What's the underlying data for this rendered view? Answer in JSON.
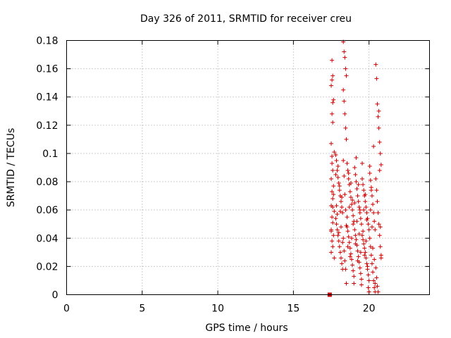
{
  "chart_data": {
    "type": "scatter",
    "title": "Day 326 of 2011, SRMTID for receiver creu",
    "xlabel": "GPS time / hours",
    "ylabel": "SRMTID / TECUs",
    "xlim": [
      0,
      24
    ],
    "ylim": [
      0,
      0.18
    ],
    "xticks": [
      0,
      5,
      10,
      15,
      20
    ],
    "xtick_labels": [
      "0",
      "5",
      "10",
      "15",
      "20"
    ],
    "yticks": [
      0,
      0.02,
      0.04,
      0.06,
      0.08,
      0.1,
      0.12,
      0.14,
      0.16,
      0.18
    ],
    "ytick_labels": [
      "0",
      "0.02",
      "0.04",
      "0.06",
      "0.08",
      "0.1",
      "0.12",
      "0.14",
      "0.16",
      "0.18"
    ],
    "grid": true,
    "marker_color": "#cc0000",
    "zero_marker": {
      "x": 17.4,
      "y": 0.0
    },
    "series": [
      {
        "name": "creu",
        "x": [
          17.55,
          17.6,
          17.5,
          17.65,
          17.55,
          17.6,
          17.5,
          17.7,
          17.55,
          17.6,
          17.5,
          17.65,
          17.55,
          17.6,
          17.5,
          17.7,
          17.55,
          17.6,
          17.5,
          17.65,
          17.55,
          17.6,
          17.5,
          17.7,
          17.55,
          17.6,
          17.5,
          17.65,
          17.55,
          17.6,
          17.8,
          17.85,
          17.9,
          17.95,
          18.0,
          18.05,
          18.1,
          18.15,
          18.2,
          18.25,
          17.8,
          17.85,
          17.9,
          17.95,
          18.0,
          18.05,
          18.1,
          18.15,
          18.2,
          18.25,
          17.8,
          17.85,
          17.9,
          17.95,
          18.0,
          18.05,
          18.1,
          18.15,
          18.2,
          18.25,
          18.3,
          18.35,
          18.4,
          18.45,
          18.5,
          18.3,
          18.35,
          18.4,
          18.45,
          18.5,
          18.3,
          18.35,
          18.4,
          18.45,
          18.5,
          18.3,
          18.35,
          18.4,
          18.45,
          18.5,
          18.55,
          18.6,
          18.65,
          18.7,
          18.75,
          18.8,
          18.85,
          18.9,
          18.95,
          19.0,
          18.55,
          18.6,
          18.65,
          18.7,
          18.75,
          18.8,
          18.85,
          18.9,
          18.95,
          19.0,
          18.55,
          18.6,
          18.65,
          18.7,
          18.75,
          18.8,
          18.85,
          18.9,
          18.95,
          19.0,
          19.05,
          19.1,
          19.15,
          19.2,
          19.25,
          19.3,
          19.35,
          19.4,
          19.45,
          19.5,
          19.05,
          19.1,
          19.15,
          19.2,
          19.25,
          19.3,
          19.35,
          19.4,
          19.45,
          19.5,
          19.05,
          19.1,
          19.15,
          19.2,
          19.25,
          19.3,
          19.35,
          19.4,
          19.45,
          19.5,
          19.55,
          19.6,
          19.65,
          19.7,
          19.75,
          19.8,
          19.85,
          19.9,
          19.95,
          20.0,
          19.55,
          19.6,
          19.65,
          19.7,
          19.75,
          19.8,
          19.85,
          19.9,
          19.95,
          20.0,
          19.55,
          19.6,
          19.65,
          19.7,
          19.75,
          19.8,
          19.85,
          19.9,
          19.95,
          20.0,
          20.05,
          20.1,
          20.15,
          20.2,
          20.25,
          20.3,
          20.35,
          20.4,
          20.05,
          20.1,
          20.15,
          20.2,
          20.25,
          20.3,
          20.35,
          20.4,
          20.05,
          20.1,
          20.15,
          20.2,
          20.25,
          20.3,
          20.35,
          20.4,
          20.45,
          20.5,
          20.55,
          20.6,
          20.65,
          20.7,
          20.75,
          20.8,
          20.45,
          20.5,
          20.55,
          20.6,
          20.65,
          20.7,
          20.75,
          20.8,
          20.45,
          20.5,
          20.55,
          20.6,
          20.65,
          20.7,
          20.75,
          20.8
        ],
        "y": [
          0.166,
          0.155,
          0.148,
          0.138,
          0.128,
          0.122,
          0.107,
          0.101,
          0.093,
          0.088,
          0.082,
          0.077,
          0.073,
          0.068,
          0.063,
          0.059,
          0.055,
          0.051,
          0.046,
          0.042,
          0.038,
          0.034,
          0.03,
          0.026,
          0.098,
          0.062,
          0.045,
          0.071,
          0.152,
          0.136,
          0.099,
          0.095,
          0.088,
          0.083,
          0.079,
          0.074,
          0.07,
          0.066,
          0.062,
          0.058,
          0.054,
          0.05,
          0.046,
          0.042,
          0.038,
          0.034,
          0.03,
          0.026,
          0.022,
          0.018,
          0.085,
          0.063,
          0.057,
          0.091,
          0.044,
          0.077,
          0.059,
          0.048,
          0.069,
          0.037,
          0.179,
          0.172,
          0.168,
          0.16,
          0.155,
          0.145,
          0.137,
          0.128,
          0.118,
          0.11,
          0.095,
          0.084,
          0.071,
          0.06,
          0.049,
          0.04,
          0.031,
          0.024,
          0.018,
          0.008,
          0.093,
          0.088,
          0.082,
          0.078,
          0.073,
          0.069,
          0.064,
          0.06,
          0.056,
          0.052,
          0.048,
          0.045,
          0.041,
          0.037,
          0.033,
          0.029,
          0.025,
          0.021,
          0.017,
          0.013,
          0.055,
          0.034,
          0.086,
          0.062,
          0.027,
          0.079,
          0.04,
          0.067,
          0.05,
          0.008,
          0.09,
          0.085,
          0.08,
          0.075,
          0.07,
          0.066,
          0.062,
          0.058,
          0.054,
          0.05,
          0.046,
          0.042,
          0.039,
          0.035,
          0.031,
          0.027,
          0.023,
          0.019,
          0.015,
          0.011,
          0.065,
          0.036,
          0.097,
          0.052,
          0.024,
          0.078,
          0.043,
          0.06,
          0.03,
          0.007,
          0.082,
          0.078,
          0.074,
          0.07,
          0.066,
          0.062,
          0.058,
          0.054,
          0.05,
          0.046,
          0.042,
          0.039,
          0.036,
          0.033,
          0.03,
          0.026,
          0.022,
          0.018,
          0.014,
          0.01,
          0.093,
          0.045,
          0.06,
          0.028,
          0.071,
          0.038,
          0.053,
          0.02,
          0.005,
          0.002,
          0.086,
          0.081,
          0.076,
          0.07,
          0.064,
          0.058,
          0.052,
          0.046,
          0.04,
          0.034,
          0.028,
          0.022,
          0.016,
          0.01,
          0.005,
          0.002,
          0.091,
          0.06,
          0.074,
          0.048,
          0.033,
          0.105,
          0.025,
          0.008,
          0.163,
          0.153,
          0.135,
          0.126,
          0.118,
          0.108,
          0.1,
          0.092,
          0.082,
          0.074,
          0.066,
          0.058,
          0.05,
          0.042,
          0.034,
          0.026,
          0.019,
          0.012,
          0.006,
          0.002,
          0.13,
          0.088,
          0.048,
          0.028
        ]
      }
    ]
  }
}
